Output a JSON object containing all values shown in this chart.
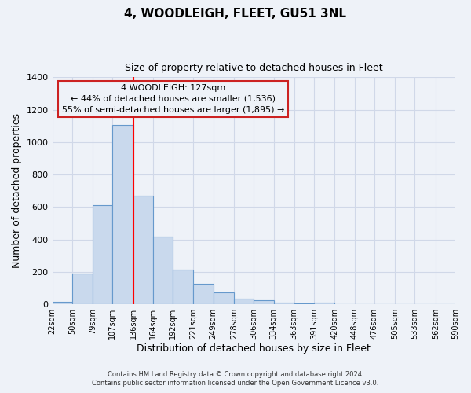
{
  "title": "4, WOODLEIGH, FLEET, GU51 3NL",
  "subtitle": "Size of property relative to detached houses in Fleet",
  "xlabel": "Distribution of detached houses by size in Fleet",
  "ylabel": "Number of detached properties",
  "bar_color": "#c9d9ed",
  "bar_edge_color": "#6699cc",
  "background_color": "#eef2f8",
  "plot_bg_color": "#eef2f8",
  "grid_color": "#d0d8e8",
  "annotation_box_edge_color": "#cc2222",
  "redline_x": 136,
  "annotation_title": "4 WOODLEIGH: 127sqm",
  "annotation_line1": "← 44% of detached houses are smaller (1,536)",
  "annotation_line2": "55% of semi-detached houses are larger (1,895) →",
  "footer_line1": "Contains HM Land Registry data © Crown copyright and database right 2024.",
  "footer_line2": "Contains public sector information licensed under the Open Government Licence v3.0.",
  "bin_labels": [
    "22sqm",
    "50sqm",
    "79sqm",
    "107sqm",
    "136sqm",
    "164sqm",
    "192sqm",
    "221sqm",
    "249sqm",
    "278sqm",
    "306sqm",
    "334sqm",
    "363sqm",
    "391sqm",
    "420sqm",
    "448sqm",
    "476sqm",
    "505sqm",
    "533sqm",
    "562sqm",
    "590sqm"
  ],
  "bin_edges": [
    22,
    50,
    79,
    107,
    136,
    164,
    192,
    221,
    249,
    278,
    306,
    334,
    363,
    391,
    420,
    448,
    476,
    505,
    533,
    562,
    590
  ],
  "bar_heights": [
    15,
    190,
    610,
    1105,
    670,
    420,
    215,
    125,
    75,
    35,
    25,
    10,
    5,
    10,
    0,
    0,
    0,
    0,
    0,
    0
  ],
  "ylim": [
    0,
    1400
  ],
  "yticks": [
    0,
    200,
    400,
    600,
    800,
    1000,
    1200,
    1400
  ]
}
